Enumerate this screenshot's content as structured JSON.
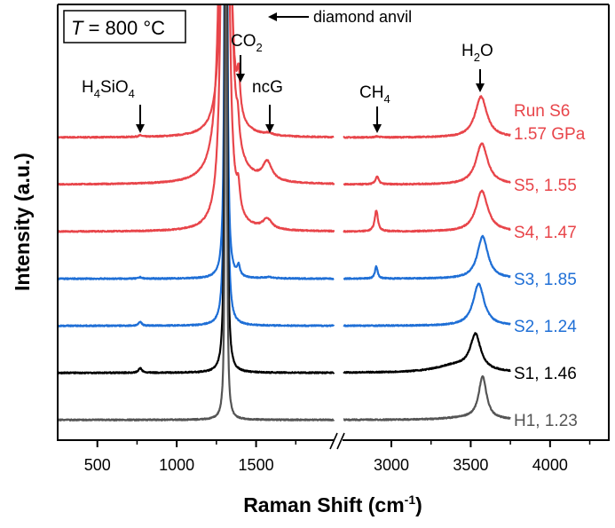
{
  "chart_data": {
    "type": "line",
    "title": "",
    "xlabel": "Raman Shift (cm",
    "xlabel_sup": "-1",
    "xlabel_end": ")",
    "ylabel": "Intensity (a.u.)",
    "x_axis_break": true,
    "x_segments": [
      [
        250,
        2000
      ],
      [
        2670,
        4370
      ]
    ],
    "x_ticks_major": [
      500,
      1000,
      1500,
      3000,
      3500,
      4000
    ],
    "x_tick_labels": [
      "500",
      "1000",
      "1500",
      "3000",
      "3500",
      "4000"
    ],
    "x_ticks_minor": [
      750,
      1250,
      1750,
      3250,
      3750,
      4250
    ],
    "ylim": [
      -0.43,
      8.83
    ],
    "y_ticks": "none",
    "grid": false,
    "legend": "inline labels at right end of each spectrum",
    "temperature_box": {
      "italic": "T",
      "rest": " = 800 °C"
    },
    "annotations": {
      "diamond": "diamond anvil",
      "co2": {
        "main": "CO",
        "sub": "2"
      },
      "h4sio4": {
        "a": "H",
        "s1": "4",
        "b": "SiO",
        "s2": "4"
      },
      "ncg": "ncG",
      "ch4": {
        "main": "CH",
        "sub": "4"
      },
      "h2o": {
        "a": "H",
        "s": "2",
        "b": "O"
      }
    },
    "peak_positions_cm1": {
      "H4SiO4": 770,
      "diamond": 1310,
      "CO2": 1390,
      "ncG": 1580,
      "CH4": 2910,
      "H2O": 3570
    },
    "series": [
      {
        "name": "Run S6",
        "label": [
          "Run S6",
          "1.57 GPa"
        ],
        "color": "#e8454a",
        "offset": 6,
        "x_range": [
          [
            250,
            1990
          ],
          [
            2700,
            3750
          ]
        ],
        "peaks": [
          {
            "c": 1310,
            "h": 35,
            "w": 12
          },
          {
            "c": 1390,
            "h": 0.8,
            "w": 11
          },
          {
            "c": 1580,
            "h": 0.04,
            "w": 30
          },
          {
            "c": 770,
            "h": 0.03,
            "w": 15
          },
          {
            "c": 2910,
            "h": 0.02,
            "w": 15
          },
          {
            "c": 3565,
            "h": 0.87,
            "w": 45
          }
        ]
      },
      {
        "name": "S5, 1.55",
        "label": [
          "S5, 1.55"
        ],
        "color": "#e8454a",
        "offset": 5,
        "x_range": [
          [
            250,
            1990
          ],
          [
            2700,
            3750
          ]
        ],
        "peaks": [
          {
            "c": 1305,
            "h": 43,
            "w": 14
          },
          {
            "c": 1385,
            "h": 0.45,
            "w": 10
          },
          {
            "c": 1570,
            "h": 0.4,
            "w": 35
          },
          {
            "c": 2910,
            "h": 0.17,
            "w": 12
          },
          {
            "c": 3570,
            "h": 0.87,
            "w": 45
          }
        ]
      },
      {
        "name": "S4, 1.47",
        "label": [
          "S4, 1.47"
        ],
        "color": "#e8454a",
        "offset": 4,
        "x_range": [
          [
            250,
            1990
          ],
          [
            2700,
            3750
          ]
        ],
        "peaks": [
          {
            "c": 1305,
            "h": 35,
            "w": 12
          },
          {
            "c": 1388,
            "h": 0.5,
            "w": 12
          },
          {
            "c": 1570,
            "h": 0.22,
            "w": 35
          },
          {
            "c": 2905,
            "h": 0.45,
            "w": 12
          },
          {
            "c": 3570,
            "h": 0.87,
            "w": 45
          }
        ]
      },
      {
        "name": "S3, 1.85",
        "label": [
          "S3, 1.85"
        ],
        "color": "#1f6fd6",
        "offset": 3,
        "x_range": [
          [
            250,
            1990
          ],
          [
            2700,
            3750
          ]
        ],
        "peaks": [
          {
            "c": 1310,
            "h": 30,
            "w": 5
          },
          {
            "c": 1390,
            "h": 0.22,
            "w": 10
          },
          {
            "c": 1580,
            "h": 0.03,
            "w": 30
          },
          {
            "c": 770,
            "h": 0.03,
            "w": 12
          },
          {
            "c": 2905,
            "h": 0.26,
            "w": 10
          },
          {
            "c": 3575,
            "h": 0.9,
            "w": 40
          }
        ]
      },
      {
        "name": "S2, 1.24",
        "label": [
          "S2, 1.24"
        ],
        "color": "#1f6fd6",
        "offset": 2,
        "x_range": [
          [
            250,
            1990
          ],
          [
            2700,
            3750
          ]
        ],
        "peaks": [
          {
            "c": 1310,
            "h": 30,
            "w": 5
          },
          {
            "c": 770,
            "h": 0.08,
            "w": 12
          },
          {
            "c": 3550,
            "h": 0.89,
            "w": 42
          }
        ]
      },
      {
        "name": "S1, 1.46",
        "label": [
          "S1, 1.46"
        ],
        "color": "#000000",
        "offset": 1,
        "x_range": [
          [
            250,
            1990
          ],
          [
            2700,
            3750
          ]
        ],
        "peaks": [
          {
            "c": 1310,
            "h": 40,
            "w": 4
          },
          {
            "c": 770,
            "h": 0.1,
            "w": 12
          },
          {
            "c": 3530,
            "h": 0.75,
            "w": 40
          },
          {
            "c": 3400,
            "h": 0.15,
            "w": 150
          }
        ]
      },
      {
        "name": "H1, 1.23",
        "label": [
          "H1, 1.23"
        ],
        "color": "#555555",
        "offset": 0,
        "x_range": [
          [
            250,
            1990
          ],
          [
            2700,
            3750
          ]
        ],
        "peaks": [
          {
            "c": 1310,
            "h": 30,
            "w": 3.5
          },
          {
            "c": 3575,
            "h": 0.9,
            "w": 30
          },
          {
            "c": 3450,
            "h": 0.04,
            "w": 150
          }
        ]
      }
    ]
  }
}
